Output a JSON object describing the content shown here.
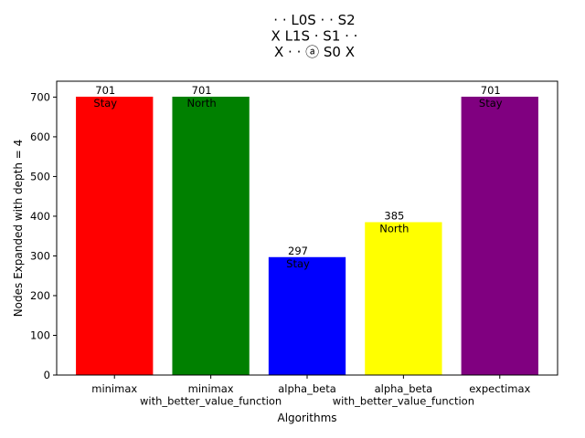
{
  "chart_data": {
    "type": "bar",
    "title_lines": [
      "·  ·  L0S ·  ·  S2",
      "X  L1S ·  S1  ·  ·",
      "X  ·  ·  ⓐ  S0  X"
    ],
    "xlabel": "Algorithms",
    "ylabel": "Nodes Expanded with depth = 4",
    "ylim": [
      0,
      740
    ],
    "yticks": [
      0,
      100,
      200,
      300,
      400,
      500,
      600,
      700
    ],
    "categories": [
      [
        "minimax"
      ],
      [
        "minimax",
        "with_better_value_function"
      ],
      [
        "alpha_beta"
      ],
      [
        "alpha_beta",
        "with_better_value_function"
      ],
      [
        "expectimax"
      ]
    ],
    "values": [
      701,
      701,
      297,
      385,
      701
    ],
    "actions": [
      "Stay",
      "North",
      "Stay",
      "North",
      "Stay"
    ],
    "colors": [
      "#ff0000",
      "#008000",
      "#0000ff",
      "#ffff00",
      "#800080"
    ],
    "grid": false,
    "legend": "none"
  }
}
